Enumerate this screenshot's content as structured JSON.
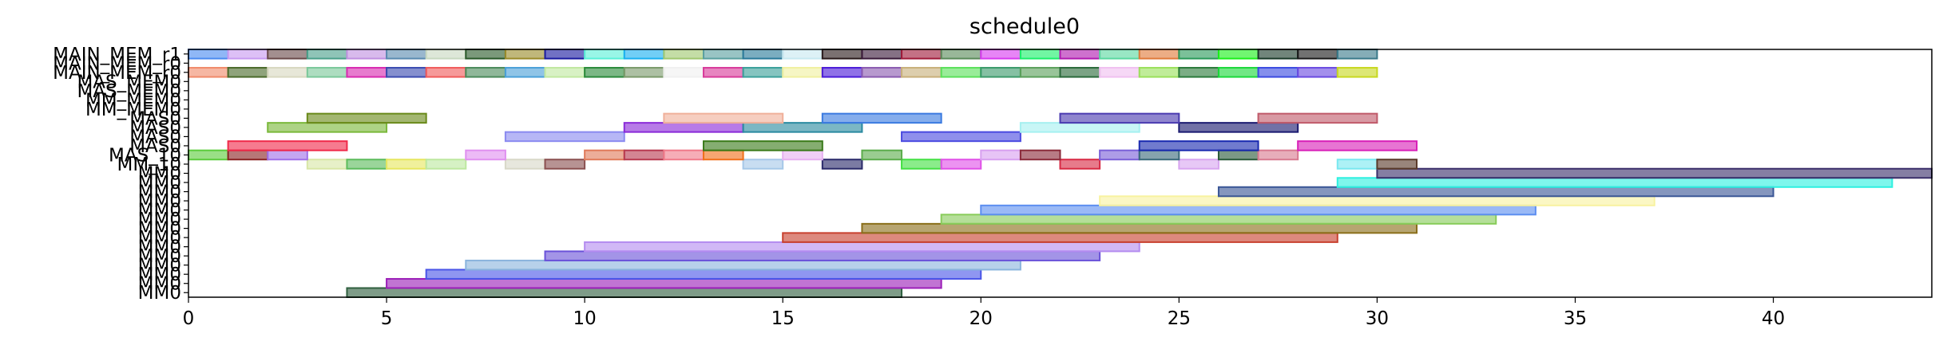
{
  "chart_data": {
    "type": "gantt",
    "title": "schedule0",
    "xlabel": "",
    "ylabel": "",
    "xlim": [
      0,
      44
    ],
    "x_ticks": [
      0,
      5,
      10,
      15,
      20,
      25,
      30,
      35,
      40
    ],
    "grid": false,
    "rows": [
      "MM0",
      "MM0",
      "MM0",
      "MM0",
      "MM0",
      "MM0",
      "MM0",
      "MM0",
      "MM0",
      "MM0",
      "MM0",
      "MM0",
      "MM0",
      "MM0",
      "MM_10",
      "MAS_10",
      "MAS0",
      "MAS0",
      "MAS0",
      "MAS0",
      "MM_MEM0",
      "MM_MEM0",
      "MAS_MEM0",
      "MAS_MEM0",
      "MAIN_MEM_r0",
      "MAIN_MEM_r0",
      "MAIN_MEM_r1"
    ],
    "tasks": [
      {
        "row": 0,
        "start": 4,
        "end": 18,
        "color": "#2f5f3f"
      },
      {
        "row": 1,
        "start": 5,
        "end": 19,
        "color": "#9b1fb8"
      },
      {
        "row": 2,
        "start": 6,
        "end": 20,
        "color": "#4a55e8"
      },
      {
        "row": 3,
        "start": 7,
        "end": 21,
        "color": "#8ab4dd"
      },
      {
        "row": 4,
        "start": 9,
        "end": 23,
        "color": "#6a52d9"
      },
      {
        "row": 5,
        "start": 10,
        "end": 24,
        "color": "#b48cf0"
      },
      {
        "row": 6,
        "start": 15,
        "end": 29,
        "color": "#c8402e"
      },
      {
        "row": 7,
        "start": 17,
        "end": 31,
        "color": "#8a6e1a"
      },
      {
        "row": 8,
        "start": 19,
        "end": 33,
        "color": "#88cc5a"
      },
      {
        "row": 9,
        "start": 20,
        "end": 34,
        "color": "#5c8ef0"
      },
      {
        "row": 10,
        "start": 23,
        "end": 37,
        "color": "#f8f2a0"
      },
      {
        "row": 11,
        "start": 26,
        "end": 40,
        "color": "#3a5696"
      },
      {
        "row": 12,
        "start": 29,
        "end": 43,
        "color": "#2ef0e0"
      },
      {
        "row": 13,
        "start": 30,
        "end": 44,
        "color": "#3a2f6a"
      },
      {
        "row": 14,
        "start": 3,
        "end": 4,
        "color": "#d8e6a6"
      },
      {
        "row": 14,
        "start": 4,
        "end": 5,
        "color": "#5cbc5c"
      },
      {
        "row": 14,
        "start": 5,
        "end": 6,
        "color": "#e6e660"
      },
      {
        "row": 14,
        "start": 6,
        "end": 7,
        "color": "#bde8a0"
      },
      {
        "row": 14,
        "start": 8,
        "end": 9,
        "color": "#d8d8c8"
      },
      {
        "row": 14,
        "start": 9,
        "end": 10,
        "color": "#8a5050"
      },
      {
        "row": 14,
        "start": 14,
        "end": 15,
        "color": "#a6c8e8"
      },
      {
        "row": 14,
        "start": 16,
        "end": 17,
        "color": "#2a2a6a"
      },
      {
        "row": 14,
        "start": 18,
        "end": 19,
        "color": "#44e044"
      },
      {
        "row": 14,
        "start": 19,
        "end": 20,
        "color": "#e050e8"
      },
      {
        "row": 14,
        "start": 22,
        "end": 23,
        "color": "#d82a44"
      },
      {
        "row": 14,
        "start": 25,
        "end": 26,
        "color": "#d8a6f0"
      },
      {
        "row": 14,
        "start": 29,
        "end": 30,
        "color": "#7ae8f0"
      },
      {
        "row": 14,
        "start": 30,
        "end": 31,
        "color": "#5a3a2a"
      },
      {
        "row": 15,
        "start": 0,
        "end": 1,
        "color": "#5ccc3c"
      },
      {
        "row": 15,
        "start": 1,
        "end": 2,
        "color": "#8a2424"
      },
      {
        "row": 15,
        "start": 2,
        "end": 3,
        "color": "#a070e8"
      },
      {
        "row": 15,
        "start": 7,
        "end": 8,
        "color": "#e090f0"
      },
      {
        "row": 15,
        "start": 10,
        "end": 11,
        "color": "#e07a5a"
      },
      {
        "row": 15,
        "start": 11,
        "end": 12,
        "color": "#b83a50"
      },
      {
        "row": 15,
        "start": 12,
        "end": 13,
        "color": "#f07a8a"
      },
      {
        "row": 15,
        "start": 13,
        "end": 14,
        "color": "#f0701c"
      },
      {
        "row": 15,
        "start": 15,
        "end": 16,
        "color": "#e6b0f0"
      },
      {
        "row": 15,
        "start": 17,
        "end": 18,
        "color": "#5cac4c"
      },
      {
        "row": 15,
        "start": 20,
        "end": 21,
        "color": "#d8a0f0"
      },
      {
        "row": 15,
        "start": 21,
        "end": 22,
        "color": "#8a2a3a"
      },
      {
        "row": 15,
        "start": 23,
        "end": 24,
        "color": "#7a60d8"
      },
      {
        "row": 15,
        "start": 24,
        "end": 25,
        "color": "#3a6a7a"
      },
      {
        "row": 15,
        "start": 26,
        "end": 27,
        "color": "#2a5a3a"
      },
      {
        "row": 15,
        "start": 27,
        "end": 28,
        "color": "#d87a90"
      },
      {
        "row": 16,
        "start": 1,
        "end": 4,
        "color": "#f02a4a"
      },
      {
        "row": 16,
        "start": 13,
        "end": 16,
        "color": "#3a7a1a"
      },
      {
        "row": 16,
        "start": 24,
        "end": 27,
        "color": "#1a2ab0"
      },
      {
        "row": 16,
        "start": 28,
        "end": 31,
        "color": "#d820b8"
      },
      {
        "row": 17,
        "start": 8,
        "end": 11,
        "color": "#8a8af0"
      },
      {
        "row": 17,
        "start": 18,
        "end": 21,
        "color": "#4a4ae0"
      },
      {
        "row": 18,
        "start": 2,
        "end": 5,
        "color": "#7ab83a"
      },
      {
        "row": 18,
        "start": 11,
        "end": 14,
        "color": "#8a2ad8"
      },
      {
        "row": 18,
        "start": 14,
        "end": 17,
        "color": "#2a8aa0"
      },
      {
        "row": 18,
        "start": 21,
        "end": 24,
        "color": "#a6f0f0"
      },
      {
        "row": 18,
        "start": 25,
        "end": 28,
        "color": "#1a1a70"
      },
      {
        "row": 19,
        "start": 3,
        "end": 6,
        "color": "#6a8a1a"
      },
      {
        "row": 19,
        "start": 12,
        "end": 15,
        "color": "#f0b09a"
      },
      {
        "row": 19,
        "start": 16,
        "end": 19,
        "color": "#3a7ae0"
      },
      {
        "row": 19,
        "start": 22,
        "end": 25,
        "color": "#4a3ab0"
      },
      {
        "row": 19,
        "start": 27,
        "end": 30,
        "color": "#c05a6a"
      },
      {
        "row": 24,
        "start": 0,
        "end": 1,
        "color": "#f08a6a"
      },
      {
        "row": 24,
        "start": 1,
        "end": 2,
        "color": "#4a6a2a"
      },
      {
        "row": 24,
        "start": 2,
        "end": 3,
        "color": "#d8d8c0"
      },
      {
        "row": 24,
        "start": 3,
        "end": 4,
        "color": "#7ac89a"
      },
      {
        "row": 24,
        "start": 4,
        "end": 5,
        "color": "#d82ab0"
      },
      {
        "row": 24,
        "start": 5,
        "end": 6,
        "color": "#3a4ab0"
      },
      {
        "row": 24,
        "start": 6,
        "end": 7,
        "color": "#f05a5a"
      },
      {
        "row": 24,
        "start": 7,
        "end": 8,
        "color": "#4a8a5a"
      },
      {
        "row": 24,
        "start": 8,
        "end": 9,
        "color": "#4aa0d8"
      },
      {
        "row": 24,
        "start": 9,
        "end": 10,
        "color": "#c0e8a0"
      },
      {
        "row": 24,
        "start": 10,
        "end": 11,
        "color": "#2a8a3a"
      },
      {
        "row": 24,
        "start": 11,
        "end": 12,
        "color": "#7a9a6a"
      },
      {
        "row": 24,
        "start": 12,
        "end": 13,
        "color": "#f0f0f0"
      },
      {
        "row": 24,
        "start": 13,
        "end": 14,
        "color": "#d83a9a"
      },
      {
        "row": 24,
        "start": 14,
        "end": 15,
        "color": "#3aa09a"
      },
      {
        "row": 24,
        "start": 15,
        "end": 16,
        "color": "#f0f0a0"
      },
      {
        "row": 24,
        "start": 16,
        "end": 17,
        "color": "#4a1ad8"
      },
      {
        "row": 24,
        "start": 17,
        "end": 18,
        "color": "#8a5ab0"
      },
      {
        "row": 24,
        "start": 18,
        "end": 19,
        "color": "#c8b07a"
      },
      {
        "row": 24,
        "start": 19,
        "end": 20,
        "color": "#5ae05a"
      },
      {
        "row": 24,
        "start": 20,
        "end": 21,
        "color": "#3a9a6a"
      },
      {
        "row": 24,
        "start": 21,
        "end": 22,
        "color": "#5aa05a"
      },
      {
        "row": 24,
        "start": 22,
        "end": 23,
        "color": "#2a6a3a"
      },
      {
        "row": 24,
        "start": 23,
        "end": 24,
        "color": "#f0c0f0"
      },
      {
        "row": 24,
        "start": 24,
        "end": 25,
        "color": "#9ae05a"
      },
      {
        "row": 24,
        "start": 25,
        "end": 26,
        "color": "#2a7a3a"
      },
      {
        "row": 24,
        "start": 26,
        "end": 27,
        "color": "#1ad83a"
      },
      {
        "row": 24,
        "start": 27,
        "end": 28,
        "color": "#3a4ae0"
      },
      {
        "row": 24,
        "start": 28,
        "end": 29,
        "color": "#6a4ae0"
      },
      {
        "row": 24,
        "start": 29,
        "end": 30,
        "color": "#c8d820"
      },
      {
        "row": 26,
        "start": 0,
        "end": 1,
        "color": "#4a8af0"
      },
      {
        "row": 26,
        "start": 1,
        "end": 2,
        "color": "#c89af0"
      },
      {
        "row": 26,
        "start": 2,
        "end": 3,
        "color": "#6a4a4a"
      },
      {
        "row": 26,
        "start": 3,
        "end": 4,
        "color": "#4aa08a"
      },
      {
        "row": 26,
        "start": 4,
        "end": 5,
        "color": "#c090e0"
      },
      {
        "row": 26,
        "start": 5,
        "end": 6,
        "color": "#5a8ab0"
      },
      {
        "row": 26,
        "start": 6,
        "end": 7,
        "color": "#c8d8c0"
      },
      {
        "row": 26,
        "start": 7,
        "end": 8,
        "color": "#2a5a2a"
      },
      {
        "row": 26,
        "start": 8,
        "end": 9,
        "color": "#9a8a2a"
      },
      {
        "row": 26,
        "start": 9,
        "end": 10,
        "color": "#1a1aa0"
      },
      {
        "row": 26,
        "start": 10,
        "end": 11,
        "color": "#5af0d8"
      },
      {
        "row": 26,
        "start": 11,
        "end": 12,
        "color": "#1ab0f0"
      },
      {
        "row": 26,
        "start": 12,
        "end": 13,
        "color": "#a0c870"
      },
      {
        "row": 26,
        "start": 13,
        "end": 14,
        "color": "#5aa0a0"
      },
      {
        "row": 26,
        "start": 14,
        "end": 15,
        "color": "#2a7a9a"
      },
      {
        "row": 26,
        "start": 15,
        "end": 16,
        "color": "#c8e8f0"
      },
      {
        "row": 26,
        "start": 16,
        "end": 17,
        "color": "#2a1a1a"
      },
      {
        "row": 26,
        "start": 17,
        "end": 18,
        "color": "#3a1a3a"
      },
      {
        "row": 26,
        "start": 18,
        "end": 19,
        "color": "#a01a3a"
      },
      {
        "row": 26,
        "start": 19,
        "end": 20,
        "color": "#5a8a5a"
      },
      {
        "row": 26,
        "start": 20,
        "end": 21,
        "color": "#d83af0"
      },
      {
        "row": 26,
        "start": 21,
        "end": 22,
        "color": "#1af06a"
      },
      {
        "row": 26,
        "start": 22,
        "end": 23,
        "color": "#b01ab0"
      },
      {
        "row": 26,
        "start": 23,
        "end": 24,
        "color": "#5ad8a0"
      },
      {
        "row": 26,
        "start": 24,
        "end": 25,
        "color": "#e07a3a"
      },
      {
        "row": 26,
        "start": 25,
        "end": 26,
        "color": "#2a9a5a"
      },
      {
        "row": 26,
        "start": 26,
        "end": 27,
        "color": "#1af01a"
      },
      {
        "row": 26,
        "start": 27,
        "end": 28,
        "color": "#1a3a2a"
      },
      {
        "row": 26,
        "start": 28,
        "end": 29,
        "color": "#1a1a1a"
      },
      {
        "row": 26,
        "start": 29,
        "end": 30,
        "color": "#3a7a8a"
      }
    ]
  }
}
